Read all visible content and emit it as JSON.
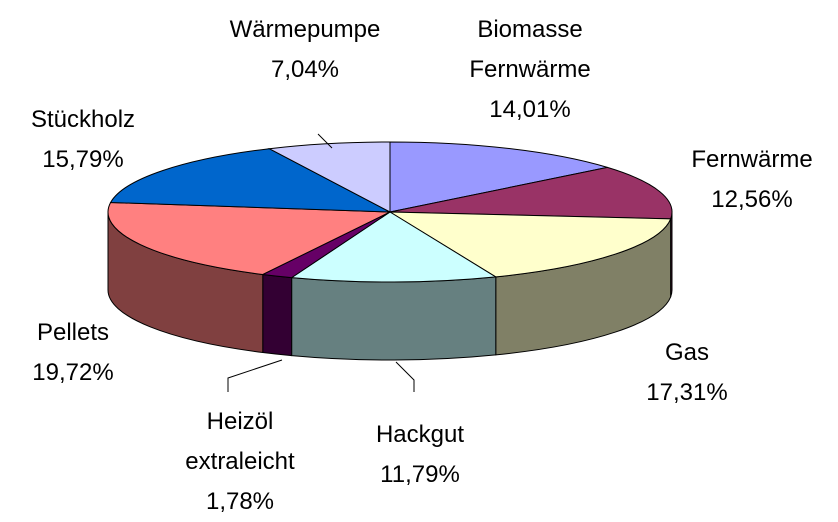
{
  "chart_data": {
    "type": "pie3d",
    "categories": [
      "Biomasse Fernwärme",
      "Fernwärme",
      "Gas",
      "Hackgut",
      "Heizöl extraleicht",
      "Pellets",
      "Stückholz",
      "Wärmepumpe"
    ],
    "values": [
      14.01,
      12.56,
      17.31,
      11.79,
      1.78,
      19.72,
      15.79,
      7.04
    ],
    "value_labels": [
      "14,01%",
      "12,56%",
      "17,31%",
      "11,79%",
      "1,78%",
      "19,72%",
      "15,79%",
      "7,04%"
    ],
    "colors": [
      "#9999ff",
      "#993366",
      "#ffffcc",
      "#ccffff",
      "#660066",
      "#ff8080",
      "#0066cc",
      "#ccccff"
    ]
  }
}
